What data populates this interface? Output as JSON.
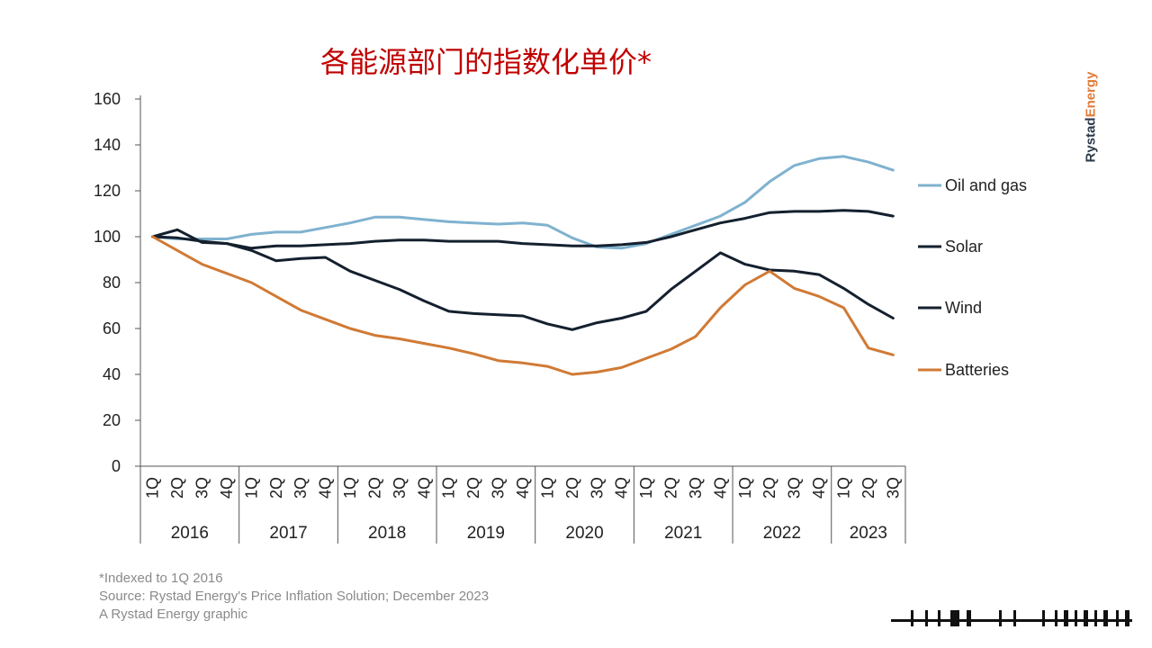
{
  "title": "各能源部门的指数化单价*",
  "brand": {
    "part1": "Rystad",
    "part2": "Energy",
    "color1": "#2c3a4a",
    "color2": "#e07b39"
  },
  "footnotes": [
    "*Indexed to 1Q 2016",
    "Source: Rystad Energy's Price Inflation Solution; December 2023",
    "A Rystad Energy graphic"
  ],
  "chart_data": {
    "type": "line",
    "title": "各能源部门的指数化单价*",
    "xlabel": "",
    "ylabel": "",
    "ylim": [
      0,
      160
    ],
    "yticks": [
      0,
      20,
      40,
      60,
      80,
      100,
      120,
      140,
      160
    ],
    "grid": false,
    "legend_position": "right",
    "quarters": [
      "1Q",
      "2Q",
      "3Q",
      "4Q",
      "1Q",
      "2Q",
      "3Q",
      "4Q",
      "1Q",
      "2Q",
      "3Q",
      "4Q",
      "1Q",
      "2Q",
      "3Q",
      "4Q",
      "1Q",
      "2Q",
      "3Q",
      "4Q",
      "1Q",
      "2Q",
      "3Q",
      "4Q",
      "1Q",
      "2Q",
      "3Q",
      "4Q",
      "1Q",
      "2Q",
      "3Q"
    ],
    "years": [
      {
        "label": "2016",
        "count": 4
      },
      {
        "label": "2017",
        "count": 4
      },
      {
        "label": "2018",
        "count": 4
      },
      {
        "label": "2019",
        "count": 4
      },
      {
        "label": "2020",
        "count": 4
      },
      {
        "label": "2021",
        "count": 4
      },
      {
        "label": "2022",
        "count": 4
      },
      {
        "label": "2023",
        "count": 3
      }
    ],
    "series": [
      {
        "name": "Oil and gas",
        "color": "#7fb2cf",
        "values": [
          100,
          99,
          99,
          99,
          101,
          102,
          102,
          104,
          106,
          108.5,
          108.5,
          107.5,
          106.5,
          106,
          105.5,
          106,
          105,
          99.5,
          95.5,
          95,
          97,
          101,
          105,
          109,
          115,
          124,
          131,
          134,
          135,
          132.5,
          129
        ]
      },
      {
        "name": "Solar",
        "color": "#14202e",
        "values": [
          100,
          99.5,
          98,
          97,
          95,
          96,
          96,
          96.5,
          97,
          98,
          98.5,
          98.5,
          98,
          98,
          98,
          97,
          96.5,
          96,
          96,
          96.5,
          97.5,
          100,
          103,
          106,
          108,
          110.5,
          111,
          111,
          111.5,
          111,
          109
        ]
      },
      {
        "name": "Wind",
        "color": "#14202e",
        "values": [
          100,
          103,
          97.5,
          97,
          94,
          89.5,
          90.5,
          91,
          85,
          81,
          77,
          72,
          67.5,
          66.5,
          66,
          65.5,
          62,
          59.5,
          62.5,
          64.5,
          67.5,
          77,
          85,
          93,
          88,
          85.5,
          85,
          83.5,
          77.5,
          70.5,
          64.5
        ]
      },
      {
        "name": "Batteries",
        "color": "#d07a35",
        "values": [
          100,
          94,
          88,
          84,
          80,
          74,
          68,
          64,
          60,
          57,
          55.5,
          53.5,
          51.5,
          49,
          46,
          45,
          43.5,
          40,
          41,
          43,
          47,
          51,
          56.5,
          69,
          79,
          85,
          77.5,
          74,
          69,
          51.5,
          48.5
        ]
      }
    ]
  }
}
